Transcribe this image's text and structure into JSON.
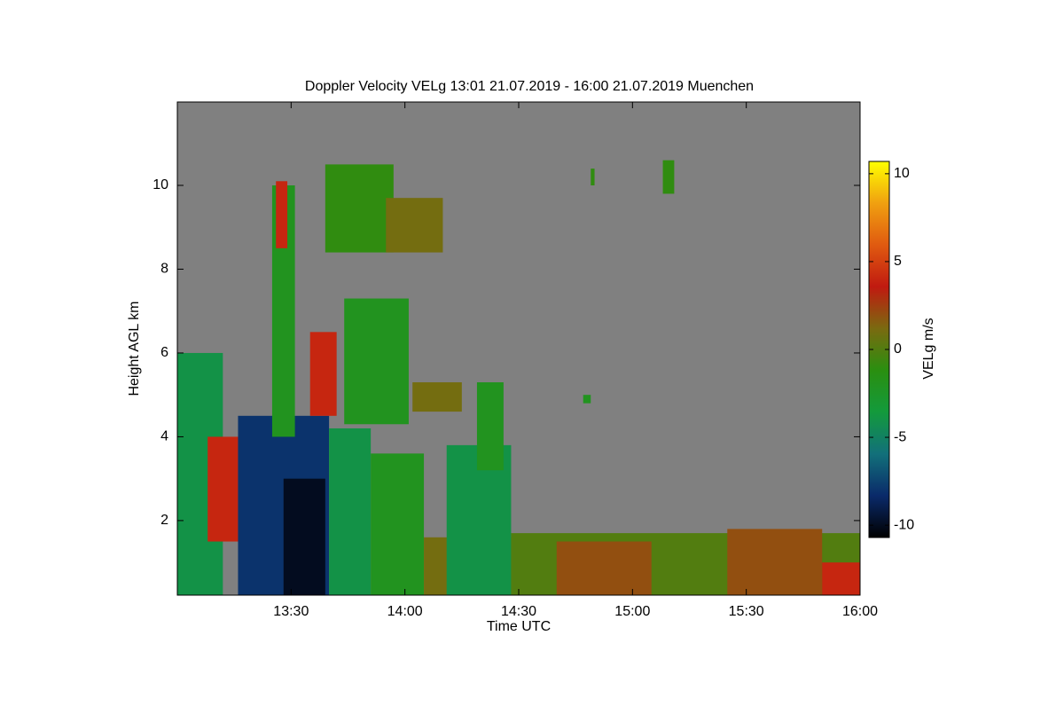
{
  "chart_data": {
    "type": "heatmap",
    "title": "Doppler Velocity VELg   13:01 21.07.2019 - 16:00 21.07.2019 Muenchen",
    "xlabel": "Time UTC",
    "ylabel": "Height AGL km",
    "zlabel": "VELg m/s",
    "xlim": [
      780,
      960
    ],
    "xticks": [
      {
        "value": 810,
        "label": "13:30"
      },
      {
        "value": 840,
        "label": "14:00"
      },
      {
        "value": 870,
        "label": "14:30"
      },
      {
        "value": 900,
        "label": "15:00"
      },
      {
        "value": 930,
        "label": "15:30"
      },
      {
        "value": 960,
        "label": "16:00"
      }
    ],
    "ylim": [
      0.22,
      11.99
    ],
    "yticks": [
      2,
      4,
      6,
      8,
      10
    ],
    "zlim": [
      -10.7,
      10.7
    ],
    "zticks": [
      -10,
      -5,
      0,
      5,
      10
    ],
    "background_color": "#808080",
    "colormap": [
      "#000000",
      "#0a2a6a",
      "#12707a",
      "#139a3c",
      "#2a8f10",
      "#7a6a10",
      "#c01a10",
      "#e05a10",
      "#f0a010",
      "#ffff00"
    ],
    "cells": [
      {
        "x": [
          780,
          792
        ],
        "y": [
          0.22,
          6
        ],
        "value": -4
      },
      {
        "x": [
          788,
          796
        ],
        "y": [
          1.5,
          4
        ],
        "value": 4
      },
      {
        "x": [
          796,
          820
        ],
        "y": [
          0.22,
          4.5
        ],
        "value": -8
      },
      {
        "x": [
          808,
          819
        ],
        "y": [
          0.22,
          3
        ],
        "value": -10
      },
      {
        "x": [
          805,
          811
        ],
        "y": [
          4,
          10
        ],
        "value": -2
      },
      {
        "x": [
          806,
          809
        ],
        "y": [
          8.5,
          10.1
        ],
        "value": 4
      },
      {
        "x": [
          815,
          822
        ],
        "y": [
          4.5,
          6.5
        ],
        "value": 4
      },
      {
        "x": [
          820,
          831
        ],
        "y": [
          0.22,
          4.2
        ],
        "value": -4
      },
      {
        "x": [
          831,
          845
        ],
        "y": [
          0.22,
          3.6
        ],
        "value": -2
      },
      {
        "x": [
          824,
          841
        ],
        "y": [
          4.3,
          7.3
        ],
        "value": -2
      },
      {
        "x": [
          819,
          837
        ],
        "y": [
          8.4,
          10.5
        ],
        "value": -1
      },
      {
        "x": [
          835,
          850
        ],
        "y": [
          8.4,
          9.7
        ],
        "value": 1
      },
      {
        "x": [
          842,
          855
        ],
        "y": [
          4.6,
          5.3
        ],
        "value": 1
      },
      {
        "x": [
          845,
          868
        ],
        "y": [
          0.22,
          1.6
        ],
        "value": 1
      },
      {
        "x": [
          851,
          868
        ],
        "y": [
          0.22,
          3.8
        ],
        "value": -4
      },
      {
        "x": [
          859,
          866
        ],
        "y": [
          3.2,
          5.3
        ],
        "value": -2
      },
      {
        "x": [
          868,
          960
        ],
        "y": [
          0.22,
          1.7
        ],
        "value": 0
      },
      {
        "x": [
          880,
          905
        ],
        "y": [
          0.22,
          1.5
        ],
        "value": 2
      },
      {
        "x": [
          925,
          950
        ],
        "y": [
          0.22,
          1.8
        ],
        "value": 2
      },
      {
        "x": [
          950,
          960
        ],
        "y": [
          0.22,
          1
        ],
        "value": 4
      },
      {
        "x": [
          887,
          889
        ],
        "y": [
          4.8,
          5
        ],
        "value": -2
      },
      {
        "x": [
          908,
          911
        ],
        "y": [
          9.8,
          10.6
        ],
        "value": -1
      },
      {
        "x": [
          889,
          890
        ],
        "y": [
          10,
          10.4
        ],
        "value": -1
      }
    ]
  }
}
